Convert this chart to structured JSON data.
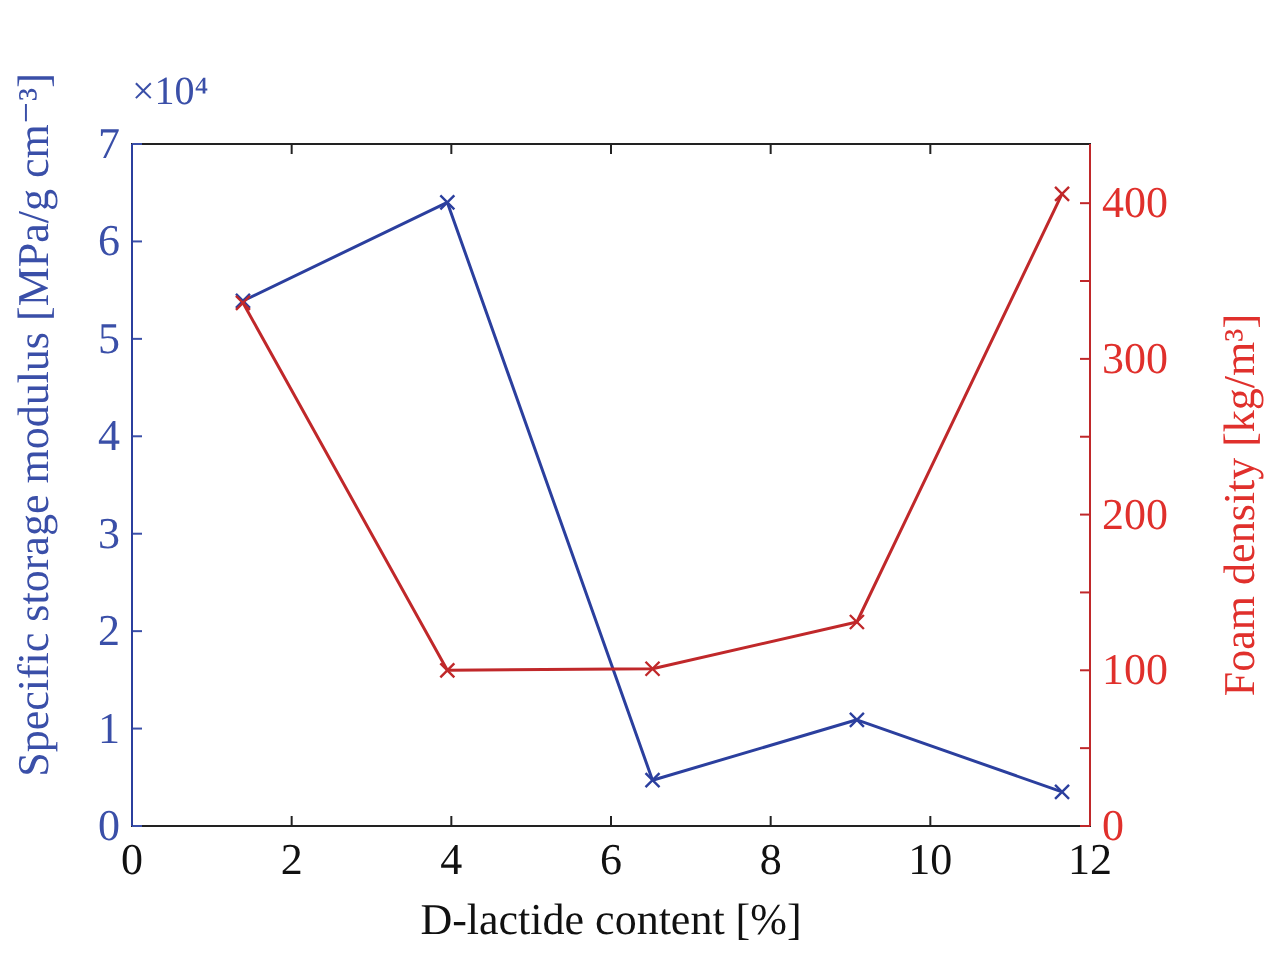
{
  "chart_data": {
    "type": "line",
    "xlabel": "D-lactide content [%]",
    "ylabel": "Specific storage modulus [MPa/g cm⁻³]",
    "y2label": "Foam density [kg/m³]",
    "annotations": [
      "×10⁴"
    ],
    "x": [
      1.39,
      3.95,
      6.52,
      9.08,
      11.65
    ],
    "series": [
      {
        "color": "#2b3f9e",
        "values": [
          5.39,
          6.4,
          0.47,
          1.09,
          0.35
        ]
      },
      {
        "color": "#c0282a",
        "axis": "y2",
        "values": [
          336,
          100,
          101,
          131,
          406
        ]
      }
    ],
    "xlim": [
      0,
      12
    ],
    "xticks": [
      0,
      2,
      4,
      6,
      8,
      10,
      12
    ],
    "ylim": [
      0,
      7
    ],
    "yticks": [
      0,
      1,
      2,
      3,
      4,
      5,
      6,
      7
    ],
    "y2lim": [
      0,
      438
    ],
    "y2ticks": [
      0,
      {
        "value": 50,
        "label": null
      },
      100,
      {
        "value": 150,
        "label": null
      },
      200,
      {
        "value": 250,
        "label": null
      },
      300,
      {
        "value": 350,
        "label": null
      },
      400
    ],
    "marker": "cross",
    "line_style": "solid",
    "grid": false
  }
}
